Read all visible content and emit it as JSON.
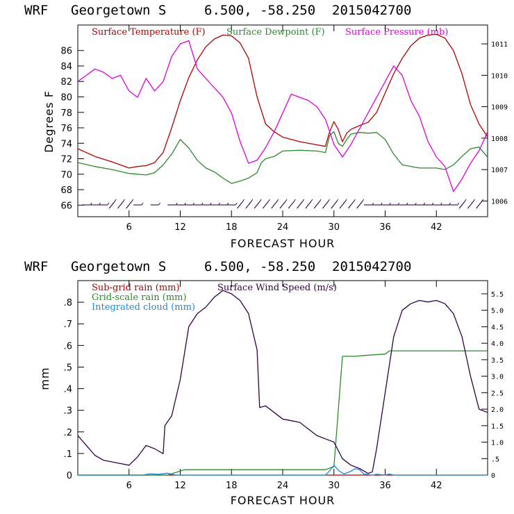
{
  "colors": {
    "temperature": "#b00000",
    "dewpoint": "#2a8a2a",
    "pressure": "#dd00dd",
    "wind": "#330044",
    "subgrid_rain": "#b00000",
    "grid_rain": "#2a8a2a",
    "cloud": "#1a8ad8",
    "axis": "#000000"
  },
  "chart_data": [
    {
      "type": "line",
      "title_parts": [
        "WRF",
        "Georgetown S",
        "6.500, -58.250",
        "2015042700"
      ],
      "xlabel": "FORECAST HOUR",
      "ylabel": "Degrees F",
      "y2label": "",
      "xlim": [
        0,
        48
      ],
      "ylim": [
        64.5,
        89.3
      ],
      "y2lim": [
        1005.5,
        1011.6
      ],
      "x_ticks": [
        6,
        12,
        18,
        24,
        30,
        36,
        42
      ],
      "y_ticks": [
        66,
        68,
        70,
        72,
        74,
        76,
        78,
        80,
        82,
        84,
        86
      ],
      "y2_ticks": [
        1006,
        1007,
        1008,
        1009,
        1010,
        1011
      ],
      "grid": false,
      "legend": "top",
      "series": [
        {
          "name": "Surface Temperature (F)",
          "axis": "left",
          "x": [
            0,
            2,
            4,
            6,
            7,
            8,
            9,
            10,
            11,
            12,
            13,
            14,
            15,
            16,
            17,
            18,
            19,
            20,
            21,
            22,
            23,
            24,
            26,
            28,
            29,
            29.5,
            30,
            30.5,
            31,
            31.5,
            32,
            33,
            34,
            35,
            36,
            37,
            38,
            39,
            40,
            41,
            42,
            43,
            44,
            45,
            46,
            47,
            48
          ],
          "y": [
            73.3,
            72.3,
            71.6,
            70.8,
            71.0,
            71.1,
            71.5,
            72.8,
            76.0,
            79.5,
            82.5,
            84.8,
            86.5,
            87.5,
            88.0,
            87.9,
            87.0,
            85.0,
            80.0,
            76.5,
            75.5,
            74.8,
            74.2,
            73.8,
            73.6,
            75.5,
            76.8,
            75.8,
            74.2,
            75.3,
            75.8,
            76.3,
            76.7,
            78.0,
            80.5,
            83.0,
            85.0,
            86.6,
            87.6,
            88.0,
            88.1,
            87.6,
            86.0,
            83.0,
            79.0,
            76.5,
            74.8
          ]
        },
        {
          "name": "Surface Dewpoint (F)",
          "axis": "left",
          "x": [
            0,
            2,
            4,
            6,
            8,
            9,
            10,
            11,
            12,
            13,
            14,
            15,
            16,
            17,
            18,
            19,
            20,
            21,
            21.5,
            22,
            23,
            24,
            26,
            28,
            29,
            29.5,
            30,
            30.5,
            31,
            31.5,
            32,
            33,
            34,
            35,
            36,
            37,
            38,
            40,
            42,
            43,
            44,
            45,
            46,
            47,
            48
          ],
          "y": [
            71.5,
            71.0,
            70.6,
            70.1,
            69.9,
            70.2,
            71.2,
            72.6,
            74.5,
            73.4,
            71.8,
            70.8,
            70.3,
            69.5,
            68.8,
            69.1,
            69.5,
            70.2,
            71.5,
            72.0,
            72.3,
            73.0,
            73.1,
            73.0,
            72.8,
            75.0,
            75.5,
            74.0,
            73.6,
            74.5,
            75.2,
            75.4,
            75.3,
            75.4,
            74.5,
            72.6,
            71.2,
            70.8,
            70.8,
            70.6,
            71.2,
            72.3,
            73.3,
            73.5,
            72.2
          ]
        },
        {
          "name": "Surface Pressure (mb)",
          "axis": "right",
          "x": [
            0,
            1,
            2,
            3,
            4,
            5,
            6,
            7,
            8,
            9,
            10,
            11,
            12,
            13,
            14,
            15,
            16,
            17,
            18,
            19,
            20,
            21,
            22,
            23,
            24,
            25,
            26,
            27,
            28,
            29,
            30,
            31,
            32,
            33,
            34,
            35,
            36,
            37,
            38,
            39,
            40,
            41,
            42,
            43,
            44,
            45,
            46,
            47,
            48
          ],
          "y": [
            1009.8,
            1010.0,
            1010.2,
            1010.1,
            1009.9,
            1010.0,
            1009.5,
            1009.3,
            1009.9,
            1009.5,
            1009.8,
            1010.6,
            1011.0,
            1011.1,
            1010.2,
            1009.9,
            1009.6,
            1009.3,
            1008.8,
            1007.9,
            1007.2,
            1007.3,
            1007.7,
            1008.2,
            1008.8,
            1009.4,
            1009.3,
            1009.2,
            1009.0,
            1008.6,
            1007.8,
            1007.4,
            1007.8,
            1008.3,
            1008.8,
            1009.3,
            1009.8,
            1010.3,
            1010.0,
            1009.2,
            1008.7,
            1007.9,
            1007.4,
            1007.1,
            1006.3,
            1006.7,
            1007.2,
            1007.6,
            1008.2
          ]
        }
      ],
      "wind_barbs": {
        "note": "wind barbs along base of upper panel",
        "x": [
          1,
          2,
          3,
          4,
          5,
          6,
          7,
          9,
          11,
          12,
          13,
          14,
          15,
          16,
          17,
          18,
          19,
          20,
          21,
          22,
          23,
          24,
          25,
          26,
          27,
          28,
          29,
          30,
          31,
          32,
          33,
          34,
          35,
          36,
          37,
          38,
          39,
          40,
          41,
          42,
          43,
          44,
          45,
          46,
          47
        ],
        "kind": [
          "w",
          "w",
          "w",
          "sw",
          "sw",
          "sw",
          "w",
          "w",
          "w",
          "w",
          "w",
          "w",
          "w",
          "w",
          "w",
          "w",
          "sw",
          "sw",
          "sw",
          "sw",
          "sw",
          "sw",
          "sw",
          "sw",
          "sw",
          "sw",
          "sw",
          "sw",
          "sw",
          "sw",
          "sw",
          "w",
          "w",
          "w",
          "w",
          "w",
          "w",
          "w",
          "w",
          "w",
          "w",
          "w",
          "sw",
          "sw",
          "sw"
        ]
      }
    },
    {
      "type": "line",
      "title_parts": [
        "WRF",
        "Georgetown S",
        "6.500, -58.250",
        "2015042700"
      ],
      "xlabel": "FORECAST HOUR",
      "ylabel": "mm",
      "y2label": "",
      "xlim": [
        0,
        48
      ],
      "ylim": [
        0,
        0.9
      ],
      "y2lim": [
        0,
        5.9
      ],
      "x_ticks": [
        6,
        12,
        18,
        24,
        30,
        36,
        42
      ],
      "y_ticks": [
        "0",
        ".1",
        ".2",
        ".3",
        ".4",
        ".5",
        ".6",
        ".7",
        ".8"
      ],
      "y_tick_values": [
        0,
        0.1,
        0.2,
        0.3,
        0.4,
        0.5,
        0.6,
        0.7,
        0.8
      ],
      "y2_ticks": [
        "0",
        ".5",
        "1.0",
        "1.5",
        "2.0",
        "2.5",
        "3.0",
        "3.5",
        "4.0",
        "4.5",
        "5.0",
        "5.5"
      ],
      "y2_tick_values": [
        0,
        0.5,
        1.0,
        1.5,
        2.0,
        2.5,
        3.0,
        3.5,
        4.0,
        4.5,
        5.0,
        5.5
      ],
      "grid": false,
      "legend": "top-left",
      "series": [
        {
          "name": "Sub-grid rain (mm)",
          "axis": "left",
          "x": [
            0,
            48
          ],
          "y": [
            0,
            0
          ]
        },
        {
          "name": "Grid-scale rain (mm)",
          "axis": "left",
          "x": [
            0,
            10.5,
            12.5,
            29.0,
            30.0,
            31.0,
            32.5,
            34.0,
            36.0,
            36.5,
            40.0,
            48.0
          ],
          "y": [
            0,
            0,
            0.025,
            0.025,
            0.04,
            0.55,
            0.55,
            0.555,
            0.56,
            0.575,
            0.575,
            0.575
          ]
        },
        {
          "name": "Surface Wind Speed (m/s)",
          "axis": "right",
          "x": [
            0,
            1,
            2,
            3,
            4,
            5,
            6,
            7,
            8,
            9,
            10,
            10.2,
            11,
            12,
            13,
            14,
            15,
            16,
            17,
            18,
            19,
            20,
            21,
            21.3,
            22,
            23,
            24,
            25,
            26,
            27,
            28,
            29,
            30,
            31,
            32,
            33,
            34,
            34.5,
            35,
            36,
            37,
            38,
            39,
            40,
            41,
            42,
            43,
            44,
            45,
            46,
            47,
            48
          ],
          "y": [
            1.2,
            0.9,
            0.6,
            0.45,
            0.4,
            0.35,
            0.3,
            0.55,
            0.9,
            0.8,
            0.65,
            1.5,
            1.8,
            2.9,
            4.5,
            4.9,
            5.1,
            5.4,
            5.6,
            5.5,
            5.3,
            4.9,
            3.8,
            2.05,
            2.1,
            1.9,
            1.7,
            1.65,
            1.6,
            1.4,
            1.2,
            1.1,
            1.0,
            0.5,
            0.3,
            0.2,
            0.05,
            0.1,
            0.8,
            2.5,
            4.2,
            5.0,
            5.2,
            5.3,
            5.25,
            5.3,
            5.2,
            4.9,
            4.2,
            3.0,
            2.0,
            1.9
          ]
        },
        {
          "name": "Integrated cloud (mm)",
          "axis": "left",
          "x": [
            0,
            7.5,
            8.5,
            9.5,
            10.5,
            11.5,
            29.0,
            29.5,
            30.0,
            30.6,
            31.2,
            32.0,
            32.5,
            33.0,
            33.5,
            34.5,
            35.0,
            36.0,
            36.5,
            37.0,
            48.0
          ],
          "y": [
            0,
            0,
            0.006,
            0.004,
            0.009,
            0,
            0,
            0.02,
            0.045,
            0.02,
            0.005,
            0.018,
            0.03,
            0.025,
            0.005,
            0,
            0.004,
            0,
            0.005,
            0,
            0
          ]
        }
      ]
    }
  ],
  "labels": {
    "top": {
      "title_wrf": "WRF",
      "title_site": "Georgetown S",
      "title_coords": "6.500, -58.250",
      "title_date": "2015042700",
      "legend_temp": "Surface Temperature (F)",
      "legend_dew": "Surface Dewpoint (F)",
      "legend_pres": "Surface Pressure (mb)",
      "ylabel": "Degrees F",
      "xlabel": "FORECAST HOUR"
    },
    "bottom": {
      "title_wrf": "WRF",
      "title_site": "Georgetown S",
      "title_coords": "6.500, -58.250",
      "title_date": "2015042700",
      "legend_subgrid": "Sub-grid rain (mm)",
      "legend_grid": "Grid-scale rain (mm)",
      "legend_cloud": "Integrated cloud (mm)",
      "legend_wind": "Surface Wind Speed (m/s)",
      "ylabel": "mm",
      "xlabel": "FORECAST HOUR"
    }
  }
}
